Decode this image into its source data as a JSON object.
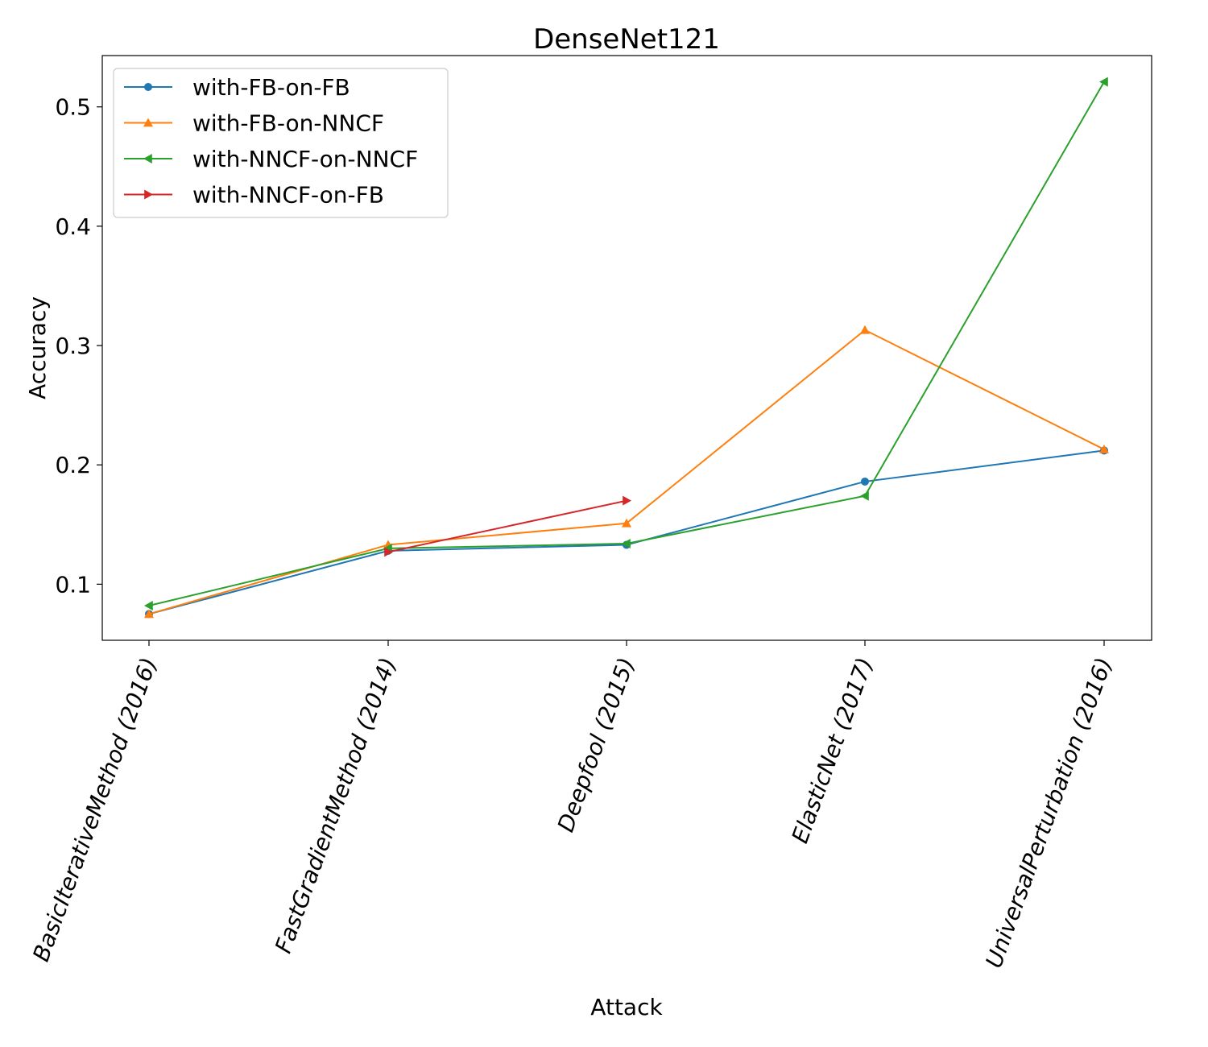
{
  "chart_data": {
    "type": "line",
    "title": "DenseNet121",
    "xlabel": "Attack",
    "ylabel": "Accuracy",
    "categories": [
      "BasicIterativeMethod (2016)",
      "FastGradientMethod (2014)",
      "Deepfool (2015)",
      "ElasticNet (2017)",
      "UniversalPerturbation (2016)"
    ],
    "ylim": [
      0.053,
      0.543
    ],
    "yticks": [
      0.1,
      0.2,
      0.3,
      0.4,
      0.5
    ],
    "ytick_labels": [
      "0.1",
      "0.2",
      "0.3",
      "0.4",
      "0.5"
    ],
    "grid": false,
    "legend_position": "top-left",
    "series": [
      {
        "name": "with-FB-on-FB",
        "color": "#1f77b4",
        "marker": "circle",
        "values": [
          0.075,
          0.128,
          0.133,
          0.186,
          0.212
        ]
      },
      {
        "name": "with-FB-on-NNCF",
        "color": "#ff7f0e",
        "marker": "triangle-up",
        "values": [
          0.075,
          0.133,
          0.151,
          0.313,
          0.213
        ]
      },
      {
        "name": "with-NNCF-on-NNCF",
        "color": "#2ca02c",
        "marker": "triangle-left",
        "values": [
          0.082,
          0.13,
          0.134,
          0.174,
          0.521
        ]
      },
      {
        "name": "with-NNCF-on-FB",
        "color": "#d62728",
        "marker": "triangle-right",
        "values": [
          null,
          0.127,
          0.17,
          null,
          null
        ]
      }
    ]
  }
}
